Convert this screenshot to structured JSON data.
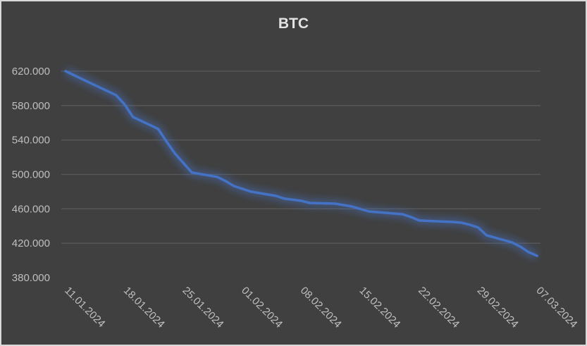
{
  "chart_data": {
    "type": "line",
    "title": "BTC",
    "xlabel": "",
    "ylabel": "",
    "ylim": [
      380000,
      620000
    ],
    "y_ticks": [
      "620.000",
      "580.000",
      "540.000",
      "500.000",
      "460.000",
      "420.000",
      "380.000"
    ],
    "y_tick_values": [
      620000,
      580000,
      540000,
      500000,
      460000,
      420000,
      380000
    ],
    "x_ticks": [
      "11.01.2024",
      "18.01.2024",
      "25.01.2024",
      "01.02.2024",
      "08.02.2024",
      "15.02.2024",
      "22.02.2024",
      "29.02.2024",
      "07.03.2024"
    ],
    "grid": true,
    "legend": "none",
    "line_color": "#4472c4",
    "series": [
      {
        "name": "BTC",
        "x": [
          "11.01.2024",
          "17.01.2024",
          "18.01.2024",
          "19.01.2024",
          "22.01.2024",
          "23.01.2024",
          "24.01.2024",
          "26.01.2024",
          "29.01.2024",
          "30.01.2024",
          "31.01.2024",
          "02.02.2024",
          "05.02.2024",
          "06.02.2024",
          "08.02.2024",
          "09.02.2024",
          "12.02.2024",
          "14.02.2024",
          "16.02.2024",
          "20.02.2024",
          "21.02.2024",
          "22.02.2024",
          "26.02.2024",
          "27.02.2024",
          "28.02.2024",
          "29.02.2024",
          "01.03.2024",
          "04.03.2024",
          "05.03.2024",
          "06.03.2024",
          "07.03.2024"
        ],
        "day_index": [
          0,
          6,
          7,
          8,
          11,
          12,
          13,
          15,
          18,
          19,
          20,
          22,
          25,
          26,
          28,
          29,
          32,
          34,
          36,
          40,
          41,
          42,
          46,
          47,
          48,
          49,
          50,
          53,
          54,
          55,
          56
        ],
        "values": [
          620000,
          592100,
          581500,
          566800,
          552800,
          538100,
          524200,
          502100,
          497100,
          492200,
          486500,
          480000,
          475000,
          471800,
          469300,
          466800,
          466000,
          462700,
          457000,
          453700,
          450500,
          446400,
          444700,
          443900,
          441500,
          438200,
          429200,
          421000,
          416100,
          409600,
          405400
        ]
      }
    ]
  },
  "colors": {
    "background": "#404040",
    "border": "#d9d9d9",
    "gridline": "#595959",
    "label": "#bfbfbf",
    "title": "#e3e3e3",
    "line": "#4472c4"
  }
}
